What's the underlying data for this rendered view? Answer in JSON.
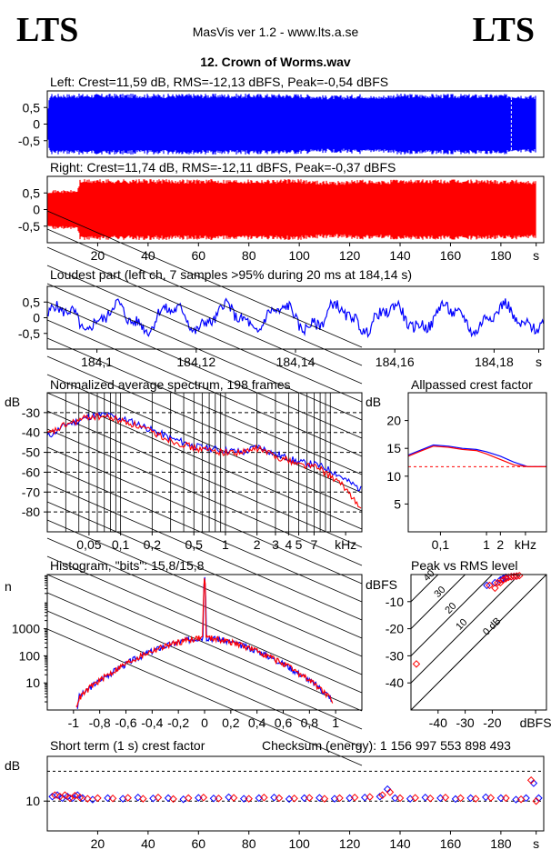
{
  "header": {
    "logo_left": "LTS",
    "logo_right": "LTS",
    "app_title": "MasVis ver 1.2 - www.lts.a.se",
    "file_title": "12. Crown of Worms.wav"
  },
  "chart_data": [
    {
      "id": "left",
      "type": "area",
      "title": "Left: Crest=11,59 dB, RMS=-12,13 dBFS, Peak=-0,54 dBFS",
      "color": "#0000ff",
      "ylim": [
        -1,
        1
      ],
      "y_ticks": [
        "0,5",
        "0",
        "-0,5"
      ],
      "y_tick_values": [
        0.5,
        0,
        -0.5
      ],
      "xlim": [
        0,
        197
      ],
      "envelope": {
        "x": [
          0,
          1,
          12,
          13,
          20,
          40,
          60,
          80,
          100,
          110,
          118,
          125,
          130,
          137,
          140,
          160,
          180,
          186,
          194
        ],
        "amp": [
          0.25,
          0.97,
          0.97,
          0.97,
          0.97,
          0.97,
          0.97,
          0.97,
          0.97,
          0.92,
          0.92,
          0.97,
          0.9,
          0.96,
          0.97,
          0.96,
          0.96,
          0.96,
          0.92
        ]
      },
      "marker_x": 184.14
    },
    {
      "id": "right",
      "type": "area",
      "title": "Right: Crest=11,74 dB, RMS=-12,11 dBFS, Peak=-0,37 dBFS",
      "color": "#ff0000",
      "ylim": [
        -1,
        1
      ],
      "y_ticks": [
        "0,5",
        "0",
        "-0,5"
      ],
      "y_tick_values": [
        0.5,
        0,
        -0.5
      ],
      "xlim": [
        0,
        197
      ],
      "x_ticks": [
        "20",
        "40",
        "60",
        "80",
        "100",
        "120",
        "140",
        "160",
        "180",
        "s"
      ],
      "x_tick_values": [
        20,
        40,
        60,
        80,
        100,
        120,
        140,
        160,
        180,
        194
      ],
      "envelope": {
        "x": [
          0,
          1,
          12,
          13,
          20,
          40,
          60,
          80,
          100,
          110,
          118,
          125,
          130,
          137,
          140,
          160,
          180,
          186,
          194
        ],
        "amp": [
          0.6,
          0.62,
          0.62,
          0.97,
          0.97,
          0.97,
          0.97,
          0.97,
          0.97,
          0.92,
          0.92,
          0.97,
          0.9,
          0.96,
          0.97,
          0.96,
          0.96,
          0.96,
          0.92
        ]
      }
    },
    {
      "id": "loudest",
      "type": "line",
      "title": "Loudest part (left  ch, 7 samples >95% during 20 ms at 184,14 s)",
      "color": "#0000ff",
      "ylim": [
        -1,
        1
      ],
      "xlim": [
        184.09,
        184.19
      ],
      "y_ticks": [
        "0,5",
        "0",
        "-0,5"
      ],
      "y_tick_values": [
        0.5,
        0,
        -0.5
      ],
      "x_ticks": [
        "184,1",
        "184,12",
        "184,14",
        "184,16",
        "184,18",
        "s"
      ],
      "x_tick_values": [
        184.1,
        184.12,
        184.14,
        184.16,
        184.18,
        184.189
      ]
    },
    {
      "id": "spectrum",
      "type": "line",
      "title": "Normalized average spectrum, 198 frames",
      "ylabel": "dB",
      "xlabel": "kHz",
      "ylim": [
        -90,
        -20
      ],
      "xlim": [
        0.02,
        20
      ],
      "x_scale": "log",
      "y_ticks": [
        "-30",
        "-40",
        "-50",
        "-60",
        "-70",
        "-80"
      ],
      "y_tick_values": [
        -30,
        -40,
        -50,
        -60,
        -70,
        -80
      ],
      "x_ticks": [
        "0,05",
        "0,1",
        "0,2",
        "0,5",
        "1",
        "2",
        "3",
        "4",
        "5",
        "7",
        "kHz"
      ],
      "x_tick_values": [
        0.05,
        0.1,
        0.2,
        0.5,
        1,
        2,
        3,
        4,
        5,
        7,
        14
      ],
      "series": [
        {
          "color": "#0000ff",
          "x": [
            0.02,
            0.03,
            0.05,
            0.07,
            0.1,
            0.15,
            0.2,
            0.3,
            0.5,
            0.7,
            1,
            1.5,
            2,
            3,
            5,
            7,
            10,
            15,
            20
          ],
          "y": [
            -42,
            -36,
            -32,
            -31,
            -33,
            -36,
            -39,
            -43,
            -47,
            -48,
            -49,
            -50,
            -47,
            -51,
            -55,
            -56,
            -59,
            -65,
            -69
          ]
        },
        {
          "color": "#ff0000",
          "x": [
            0.02,
            0.03,
            0.05,
            0.07,
            0.1,
            0.15,
            0.2,
            0.3,
            0.5,
            0.7,
            1,
            1.5,
            2,
            3,
            5,
            7,
            10,
            15,
            20
          ],
          "y": [
            -41,
            -36,
            -32,
            -32,
            -34,
            -37,
            -40,
            -44,
            -48,
            -49,
            -50,
            -50,
            -48,
            -52,
            -56,
            -57,
            -62,
            -70,
            -80
          ]
        }
      ]
    },
    {
      "id": "allpassed_crest",
      "type": "line",
      "title": "Allpassed crest factor",
      "ylabel": "dB",
      "xlabel": "kHz",
      "ylim": [
        0,
        25
      ],
      "xlim": [
        0.02,
        20
      ],
      "x_scale": "log",
      "y_ticks": [
        "20",
        "15",
        "10",
        "5"
      ],
      "y_tick_values": [
        20,
        15,
        10,
        5
      ],
      "x_ticks": [
        "0,1",
        "1",
        "2",
        "kHz"
      ],
      "x_tick_values": [
        0.1,
        1,
        2,
        7
      ],
      "reference_line": 11.7,
      "series": [
        {
          "color": "#0000ff",
          "x": [
            0.02,
            0.04,
            0.07,
            0.15,
            0.3,
            0.6,
            1,
            2,
            4,
            8,
            20
          ],
          "y": [
            13.8,
            14.8,
            15.6,
            15.4,
            15.0,
            14.8,
            14.4,
            13.6,
            12.5,
            11.7,
            11.7
          ]
        },
        {
          "color": "#ff0000",
          "x": [
            0.02,
            0.04,
            0.07,
            0.15,
            0.3,
            0.6,
            1,
            2,
            4,
            8,
            20
          ],
          "y": [
            13.6,
            14.6,
            15.4,
            15.2,
            14.8,
            14.6,
            14.0,
            13.0,
            12.0,
            11.7,
            11.7
          ]
        }
      ]
    },
    {
      "id": "histogram",
      "type": "line",
      "title": "Histogram, \"bits\": 15,8/15,8",
      "ylabel": "n",
      "y_scale": "log",
      "ylim": [
        1,
        100000
      ],
      "xlim": [
        -1.2,
        1.2
      ],
      "y_ticks": [
        "1000",
        "100",
        "10"
      ],
      "y_tick_values": [
        1000,
        100,
        10
      ],
      "x_ticks": [
        "-1",
        "-0,8",
        "-0,6",
        "-0,4",
        "-0,2",
        "0",
        "0,2",
        "0,4",
        "0,6",
        "0,8",
        "1"
      ],
      "x_tick_values": [
        -1,
        -0.8,
        -0.6,
        -0.4,
        -0.2,
        0,
        0.2,
        0.4,
        0.6,
        0.8,
        1
      ],
      "series": [
        {
          "color": "#0000ff",
          "x": [
            -0.97,
            -0.96,
            -0.9,
            -0.8,
            -0.7,
            -0.6,
            -0.5,
            -0.4,
            -0.3,
            -0.2,
            -0.1,
            -0.01,
            0,
            0.01,
            0.1,
            0.2,
            0.3,
            0.4,
            0.5,
            0.6,
            0.7,
            0.8,
            0.9,
            0.96,
            0.97
          ],
          "y": [
            1.2,
            3,
            5,
            12,
            25,
            50,
            90,
            150,
            230,
            320,
            420,
            480,
            90000,
            480,
            420,
            320,
            230,
            150,
            90,
            50,
            25,
            12,
            5,
            3,
            1.2
          ]
        },
        {
          "color": "#ff0000",
          "x": [
            -0.98,
            -0.96,
            -0.9,
            -0.8,
            -0.7,
            -0.6,
            -0.5,
            -0.4,
            -0.3,
            -0.2,
            -0.1,
            -0.01,
            0,
            0.01,
            0.1,
            0.2,
            0.3,
            0.4,
            0.5,
            0.6,
            0.7,
            0.8,
            0.9,
            0.96,
            0.98
          ],
          "y": [
            1.2,
            2.5,
            5,
            12,
            25,
            50,
            90,
            150,
            230,
            320,
            420,
            480,
            90000,
            480,
            420,
            320,
            230,
            150,
            90,
            50,
            25,
            12,
            5,
            2.5,
            1.2
          ]
        }
      ]
    },
    {
      "id": "peak_vs_rms",
      "type": "scatter",
      "title": "Peak vs RMS level",
      "ylabel": "dBFS",
      "xlabel": "dBFS",
      "xlim": [
        -50,
        0
      ],
      "ylim": [
        -50,
        0
      ],
      "y_ticks": [
        "-10",
        "-20",
        "-30",
        "-40"
      ],
      "y_tick_values": [
        -10,
        -20,
        -30,
        -40
      ],
      "x_ticks": [
        "-40",
        "-30",
        "-20",
        "dBFS"
      ],
      "x_tick_values": [
        -40,
        -30,
        -20,
        -4
      ],
      "crest_lines": [
        "40",
        "30",
        "20",
        "10",
        "0 dB"
      ],
      "crest_line_values": [
        40,
        30,
        20,
        10,
        0
      ],
      "series": [
        {
          "color": "#0000ff",
          "x": [
            -22,
            -19,
            -17,
            -16,
            -15,
            -13,
            -12,
            -11
          ],
          "y": [
            -4,
            -3,
            -2,
            -1.5,
            -1,
            -0.8,
            -0.7,
            -0.6
          ]
        },
        {
          "color": "#ff0000",
          "x": [
            -48,
            -21,
            -19,
            -18,
            -17,
            -16,
            -15,
            -14,
            -13,
            -12,
            -11,
            -10
          ],
          "y": [
            -33,
            -4,
            -5,
            -3,
            -3,
            -2,
            -1.5,
            -1,
            -0.8,
            -0.7,
            -0.6,
            -0.4
          ]
        }
      ]
    },
    {
      "id": "short_term_crest",
      "type": "scatter",
      "title": "Short term (1 s) crest factor",
      "checksum": "Checksum (energy):  1 156 997 553 898 493",
      "ylabel": "dB",
      "xlim": [
        0,
        197
      ],
      "ylim": [
        0,
        25
      ],
      "dashed_levels": [
        20,
        10
      ],
      "y_ticks": [
        "10"
      ],
      "y_tick_values": [
        10
      ],
      "x_ticks": [
        "20",
        "40",
        "60",
        "80",
        "100",
        "120",
        "140",
        "160",
        "180",
        "s"
      ],
      "x_tick_values": [
        20,
        40,
        60,
        80,
        100,
        120,
        140,
        160,
        180,
        194
      ],
      "series": [
        {
          "color": "#0000ff",
          "x": [
            2,
            4,
            6,
            8,
            10,
            12,
            14,
            18,
            24,
            30,
            36,
            42,
            48,
            54,
            60,
            66,
            72,
            78,
            84,
            90,
            96,
            102,
            108,
            114,
            120,
            126,
            132,
            135,
            138,
            144,
            150,
            156,
            162,
            168,
            174,
            180,
            186,
            190,
            193,
            195
          ],
          "y": [
            11.5,
            12,
            11,
            11.5,
            11,
            12,
            11,
            10.5,
            11,
            10.8,
            11.2,
            10.9,
            11,
            10.6,
            11.1,
            10.9,
            11.3,
            10.8,
            11,
            11.2,
            10.7,
            11,
            11.1,
            10.8,
            11,
            11.2,
            11.5,
            14,
            11,
            10.8,
            11.2,
            11,
            10.7,
            11,
            11.3,
            11,
            10.5,
            11,
            16,
            11
          ]
        },
        {
          "color": "#ff0000",
          "x": [
            3,
            5,
            7,
            9,
            11,
            13,
            16,
            20,
            26,
            32,
            38,
            44,
            50,
            56,
            62,
            68,
            74,
            80,
            86,
            92,
            98,
            104,
            110,
            116,
            122,
            128,
            133,
            136,
            140,
            146,
            152,
            158,
            164,
            170,
            176,
            182,
            188,
            192,
            194
          ],
          "y": [
            12,
            11.5,
            12,
            11,
            11.8,
            11.2,
            10.8,
            11,
            10.9,
            11.1,
            10.8,
            11.2,
            10.7,
            11,
            11.2,
            10.9,
            11.1,
            10.8,
            11.2,
            11,
            10.9,
            11.1,
            10.8,
            11,
            11.2,
            11.4,
            12,
            13,
            11,
            11.1,
            10.9,
            11.2,
            11,
            10.8,
            11.1,
            11,
            10.6,
            17,
            10
          ]
        }
      ]
    }
  ]
}
